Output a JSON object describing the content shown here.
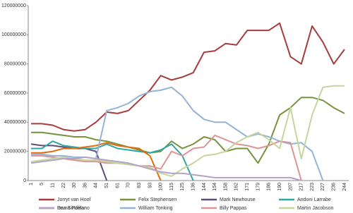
{
  "chart_data": {
    "type": "line",
    "categories": [
      "1",
      "5",
      "11",
      "22",
      "30",
      "36",
      "44",
      "51",
      "61",
      "70",
      "83",
      "93",
      "100",
      "115",
      "125",
      "136",
      "144",
      "154",
      "158",
      "162",
      "171",
      "179",
      "186",
      "190",
      "207",
      "217",
      "223",
      "227",
      "236",
      "244"
    ],
    "ylim": [
      0,
      120000000
    ],
    "yticks": [
      0,
      20000000,
      40000000,
      60000000,
      80000000,
      100000000,
      120000000
    ],
    "grid": false,
    "legend": "bottom",
    "series": [
      {
        "name": "Jorryt van Hoof",
        "color": "#a83b3b",
        "values": [
          39000000,
          39000000,
          38000000,
          35000000,
          34000000,
          35000000,
          40000000,
          47000000,
          46000000,
          48000000,
          55000000,
          62000000,
          72000000,
          69000000,
          71000000,
          74000000,
          88000000,
          89000000,
          94000000,
          93000000,
          103000000,
          103000000,
          103000000,
          108000000,
          85000000,
          80000000,
          106000000,
          95000000,
          80000000,
          90000000
        ]
      },
      {
        "name": "Felix Stephensen",
        "color": "#77933c",
        "values": [
          33000000,
          33000000,
          32000000,
          31000000,
          30000000,
          30000000,
          28000000,
          27000000,
          25000000,
          23000000,
          21000000,
          19000000,
          20000000,
          27000000,
          22000000,
          25000000,
          30000000,
          28000000,
          20000000,
          22000000,
          22000000,
          12000000,
          25000000,
          45000000,
          50000000,
          57000000,
          57000000,
          55000000,
          50000000,
          46000000
        ]
      },
      {
        "name": "Mark Newhouse",
        "color": "#604a7b",
        "values": [
          25000000,
          24000000,
          24000000,
          23000000,
          22000000,
          22000000,
          20000000,
          0,
          null,
          null,
          null,
          null,
          null,
          null,
          null,
          null,
          null,
          null,
          null,
          null,
          null,
          null,
          null,
          null,
          null,
          null,
          null,
          null,
          null,
          null
        ]
      },
      {
        "name": "Andoni Larrabe",
        "color": "#31a5a5",
        "values": [
          22000000,
          22000000,
          27000000,
          24000000,
          23000000,
          22000000,
          22000000,
          25000000,
          22000000,
          21000000,
          20000000,
          19000000,
          21000000,
          25000000,
          17000000,
          0,
          null,
          null,
          null,
          null,
          null,
          null,
          null,
          null,
          null,
          null,
          null,
          null,
          null,
          null
        ]
      },
      {
        "name": "Dan Sindelar",
        "color": "#e46c0a",
        "values": [
          19000000,
          19000000,
          20000000,
          22000000,
          22000000,
          23000000,
          24000000,
          26000000,
          24000000,
          23000000,
          22000000,
          17000000,
          0,
          null,
          null,
          null,
          null,
          null,
          null,
          null,
          null,
          null,
          null,
          null,
          null,
          null,
          null,
          null,
          null,
          null
        ]
      },
      {
        "name": "William Tonking",
        "color": "#95b3d7",
        "values": [
          18000000,
          18000000,
          17000000,
          17000000,
          16000000,
          16000000,
          15000000,
          48000000,
          50000000,
          53000000,
          58000000,
          61000000,
          62000000,
          64000000,
          58000000,
          48000000,
          42000000,
          40000000,
          40000000,
          35000000,
          30000000,
          32000000,
          30000000,
          27000000,
          25000000,
          26000000,
          20000000,
          0,
          null,
          null
        ]
      },
      {
        "name": "Billy Pappas",
        "color": "#d99694",
        "values": [
          17000000,
          17000000,
          16000000,
          15000000,
          14000000,
          13000000,
          13000000,
          12000000,
          12000000,
          11000000,
          10000000,
          10000000,
          8000000,
          20000000,
          17000000,
          22000000,
          23000000,
          31000000,
          28000000,
          25000000,
          24000000,
          22000000,
          24000000,
          27000000,
          26000000,
          0,
          null,
          null,
          null,
          null
        ]
      },
      {
        "name": "Martin Jacobson",
        "color": "#c3d69b",
        "values": [
          13000000,
          14000000,
          15000000,
          16000000,
          15000000,
          14000000,
          14000000,
          13000000,
          12000000,
          11000000,
          10000000,
          9000000,
          5000000,
          3000000,
          8000000,
          12000000,
          17000000,
          18000000,
          20000000,
          26000000,
          30000000,
          33000000,
          28000000,
          22000000,
          50000000,
          15000000,
          45000000,
          64000000,
          65000000,
          65000000
        ]
      },
      {
        "name": "Bruno Politano",
        "color": "#b3a2c7",
        "values": [
          12000000,
          13000000,
          14000000,
          15000000,
          15000000,
          16000000,
          15000000,
          14000000,
          13000000,
          12000000,
          10000000,
          8000000,
          6000000,
          5000000,
          5000000,
          4000000,
          3000000,
          2000000,
          2000000,
          2000000,
          2000000,
          2000000,
          2000000,
          2000000,
          2000000,
          0,
          null,
          null,
          null,
          null
        ]
      }
    ]
  }
}
